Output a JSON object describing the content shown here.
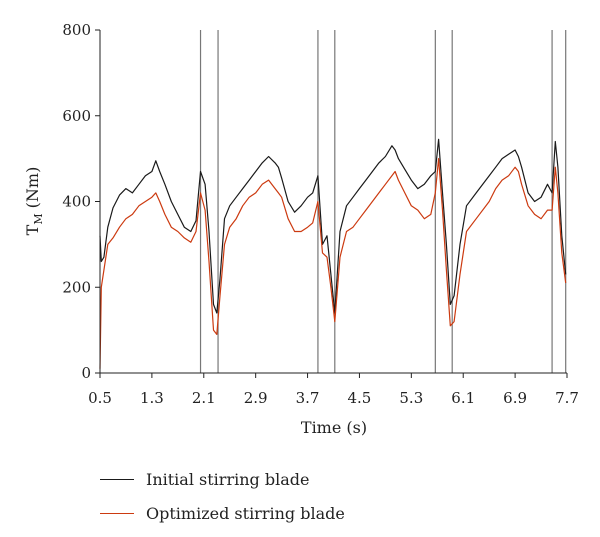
{
  "chart_data": {
    "type": "line",
    "xlabel": "Time (s)",
    "ylabel_main": "T",
    "ylabel_sub": "M",
    "ylabel_unit": " (Nm)",
    "xlim": [
      0.5,
      7.7
    ],
    "ylim": [
      0,
      800
    ],
    "xticks": [
      "0.5",
      "1.3",
      "2.1",
      "2.9",
      "3.7",
      "4.5",
      "5.3",
      "6.1",
      "6.9",
      "7.7"
    ],
    "xtick_values": [
      0.5,
      1.3,
      2.1,
      2.9,
      3.7,
      4.5,
      5.3,
      6.1,
      6.9,
      7.7
    ],
    "yticks": [
      "0",
      "200",
      "400",
      "600",
      "800"
    ],
    "ytick_values": [
      0,
      200,
      400,
      600,
      800
    ],
    "vertical_lines": [
      2.05,
      2.32,
      3.86,
      4.12,
      5.67,
      5.93,
      7.47,
      7.68
    ],
    "vertical_line_color": "#777777",
    "legend_position": "bottom-left",
    "series": [
      {
        "name": "Initial stirring blade",
        "color": "#1a1a1a",
        "x": [
          0.5,
          0.52,
          0.56,
          0.62,
          0.7,
          0.8,
          0.9,
          1.0,
          1.1,
          1.2,
          1.3,
          1.36,
          1.42,
          1.5,
          1.6,
          1.7,
          1.8,
          1.9,
          1.98,
          2.05,
          2.12,
          2.18,
          2.25,
          2.3,
          2.35,
          2.42,
          2.5,
          2.6,
          2.7,
          2.8,
          2.9,
          3.0,
          3.1,
          3.2,
          3.25,
          3.3,
          3.4,
          3.5,
          3.6,
          3.7,
          3.78,
          3.86,
          3.93,
          4.0,
          4.06,
          4.12,
          4.2,
          4.3,
          4.4,
          4.5,
          4.6,
          4.7,
          4.8,
          4.9,
          5.0,
          5.05,
          5.1,
          5.2,
          5.3,
          5.4,
          5.5,
          5.6,
          5.67,
          5.72,
          5.78,
          5.84,
          5.9,
          5.96,
          6.05,
          6.15,
          6.3,
          6.5,
          6.6,
          6.7,
          6.8,
          6.9,
          6.95,
          7.0,
          7.1,
          7.2,
          7.3,
          7.4,
          7.47,
          7.52,
          7.56,
          7.62,
          7.68
        ],
        "y": [
          320,
          260,
          270,
          340,
          385,
          415,
          430,
          420,
          440,
          460,
          470,
          495,
          470,
          440,
          400,
          370,
          340,
          330,
          355,
          470,
          440,
          330,
          160,
          140,
          220,
          360,
          390,
          410,
          430,
          450,
          470,
          490,
          505,
          490,
          480,
          455,
          400,
          375,
          390,
          410,
          420,
          460,
          300,
          320,
          230,
          140,
          330,
          390,
          410,
          430,
          450,
          470,
          490,
          505,
          530,
          520,
          500,
          475,
          450,
          430,
          440,
          460,
          470,
          545,
          420,
          300,
          160,
          180,
          300,
          390,
          420,
          460,
          480,
          500,
          510,
          520,
          505,
          480,
          420,
          400,
          410,
          440,
          420,
          540,
          480,
          320,
          230
        ]
      },
      {
        "name": "Optimized stirring blade",
        "color": "#cc3a10",
        "x": [
          0.5,
          0.52,
          0.56,
          0.62,
          0.7,
          0.8,
          0.9,
          1.0,
          1.1,
          1.2,
          1.3,
          1.36,
          1.42,
          1.5,
          1.6,
          1.7,
          1.8,
          1.9,
          1.98,
          2.05,
          2.12,
          2.18,
          2.25,
          2.3,
          2.35,
          2.42,
          2.5,
          2.6,
          2.7,
          2.8,
          2.9,
          3.0,
          3.1,
          3.2,
          3.25,
          3.3,
          3.4,
          3.5,
          3.6,
          3.7,
          3.78,
          3.86,
          3.93,
          4.0,
          4.06,
          4.12,
          4.2,
          4.3,
          4.4,
          4.5,
          4.6,
          4.7,
          4.8,
          4.9,
          5.0,
          5.05,
          5.1,
          5.2,
          5.3,
          5.4,
          5.5,
          5.6,
          5.67,
          5.72,
          5.78,
          5.84,
          5.9,
          5.96,
          6.05,
          6.15,
          6.3,
          6.5,
          6.6,
          6.7,
          6.8,
          6.9,
          6.95,
          7.0,
          7.1,
          7.2,
          7.3,
          7.4,
          7.47,
          7.52,
          7.56,
          7.62,
          7.68
        ],
        "y": [
          10,
          200,
          240,
          300,
          315,
          340,
          360,
          370,
          390,
          400,
          410,
          420,
          400,
          370,
          340,
          330,
          315,
          305,
          330,
          420,
          380,
          260,
          100,
          90,
          180,
          300,
          340,
          360,
          390,
          410,
          420,
          440,
          450,
          430,
          420,
          410,
          360,
          330,
          330,
          340,
          350,
          400,
          280,
          270,
          200,
          120,
          270,
          330,
          340,
          360,
          380,
          400,
          420,
          440,
          460,
          470,
          450,
          420,
          390,
          380,
          360,
          370,
          420,
          500,
          380,
          240,
          110,
          120,
          230,
          330,
          360,
          400,
          430,
          450,
          460,
          480,
          470,
          440,
          390,
          370,
          360,
          380,
          380,
          480,
          420,
          280,
          210
        ]
      }
    ]
  }
}
